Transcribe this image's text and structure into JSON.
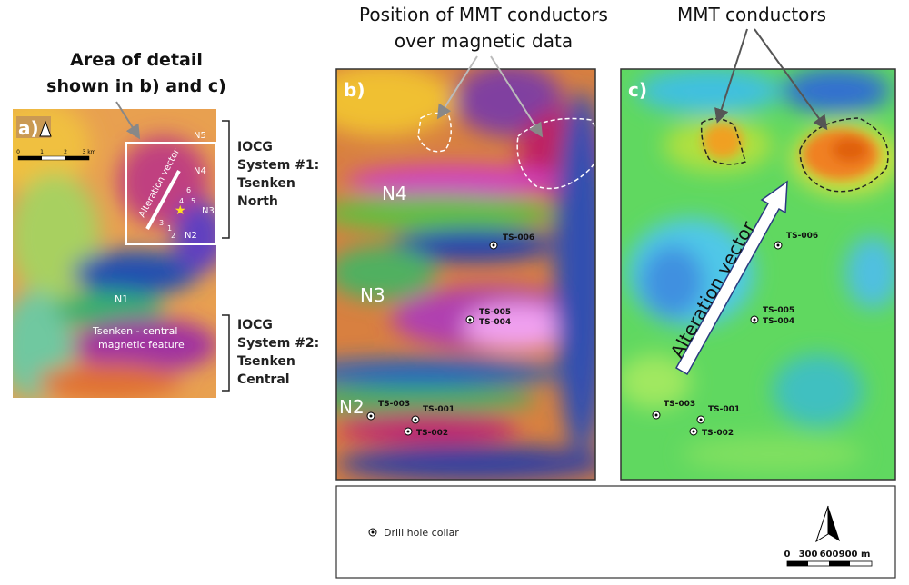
{
  "callouts": {
    "area_of_detail": [
      "Area of detail",
      "shown in b) and c)"
    ],
    "mmt_position": [
      "Position of MMT conductors",
      "over magnetic data"
    ],
    "mmt_conductors": "MMT conductors"
  },
  "panel_a": {
    "label": "a)",
    "scale_labels": [
      "0",
      "1",
      "2",
      "3 km"
    ],
    "zones": [
      "N5",
      "N4",
      "N3",
      "N2",
      "N1"
    ],
    "vector": "Alteration vector",
    "hole_numbers": [
      "6",
      "4",
      "5",
      "3",
      "1",
      "2"
    ],
    "feature": [
      "Tsenken - central",
      "magnetic feature"
    ]
  },
  "systems": [
    {
      "lines": [
        "IOCG",
        "System #1:",
        "Tsenken",
        "North"
      ]
    },
    {
      "lines": [
        "IOCG",
        "System #2:",
        "Tsenken",
        "Central"
      ]
    }
  ],
  "panel_b": {
    "label": "b)",
    "zones": [
      "N4",
      "N3",
      "N2"
    ]
  },
  "panel_c": {
    "label": "c)",
    "vector": "Alteration vector"
  },
  "drill_holes": [
    "TS-006",
    "TS-005",
    "TS-004",
    "TS-003",
    "TS-001",
    "TS-002"
  ],
  "legend": {
    "symbol": "Drill hole collar",
    "scale": [
      "0",
      "300",
      "600",
      "900 m"
    ]
  }
}
